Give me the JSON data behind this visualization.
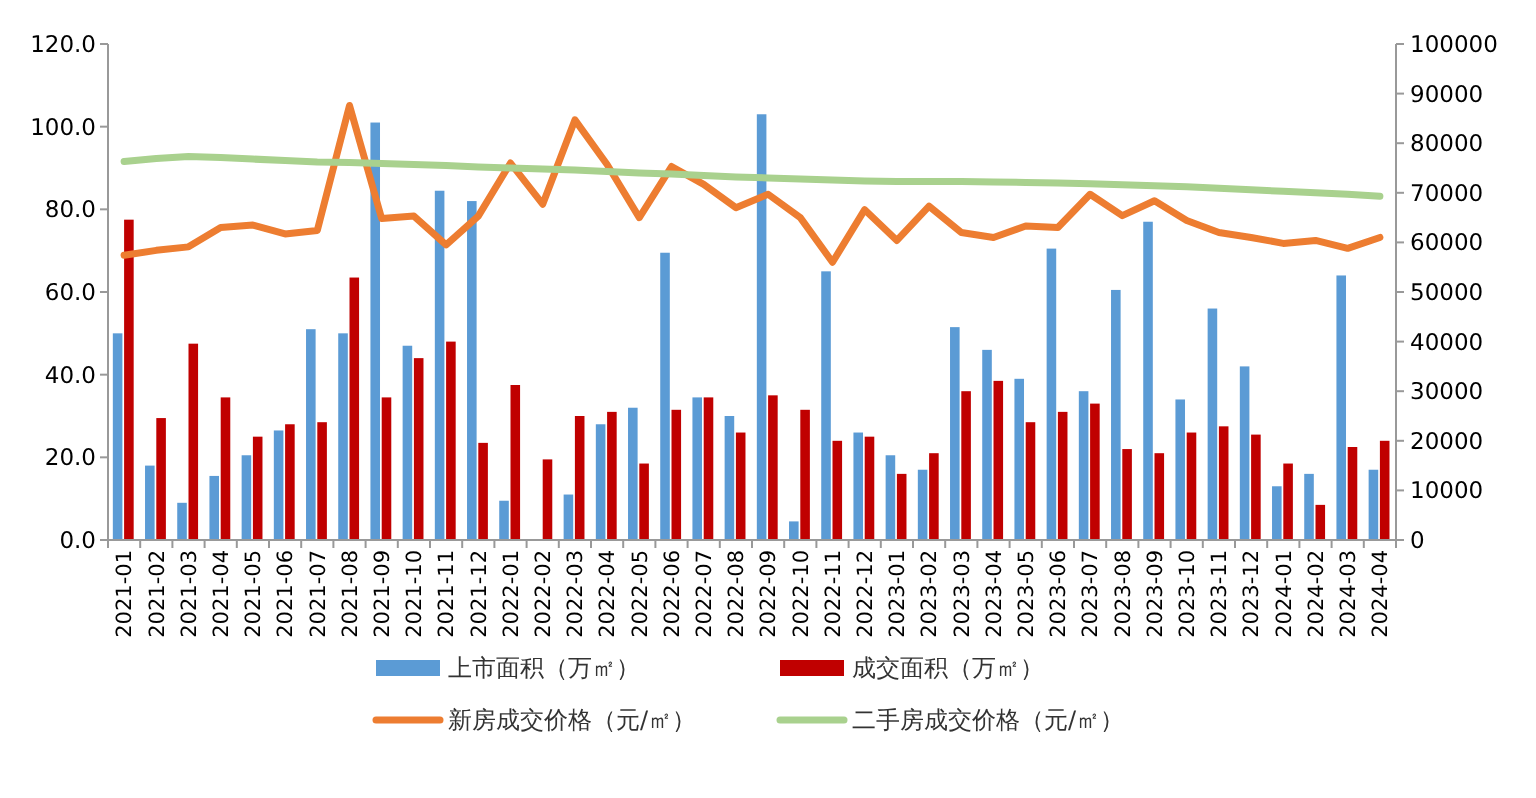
{
  "chart_data": {
    "type": "bar",
    "categories": [
      "2021-01",
      "2021-02",
      "2021-03",
      "2021-04",
      "2021-05",
      "2021-06",
      "2021-07",
      "2021-08",
      "2021-09",
      "2021-10",
      "2021-11",
      "2021-12",
      "2022-01",
      "2022-02",
      "2022-03",
      "2022-04",
      "2022-05",
      "2022-06",
      "2022-07",
      "2022-08",
      "2022-09",
      "2022-10",
      "2022-11",
      "2022-12",
      "2023-01",
      "2023-02",
      "2023-03",
      "2023-04",
      "2023-05",
      "2023-06",
      "2023-07",
      "2023-08",
      "2023-09",
      "2023-10",
      "2023-11",
      "2023-12",
      "2024-01",
      "2024-02",
      "2024-03",
      "2024-04"
    ],
    "series": [
      {
        "name": "上市面积（万㎡）",
        "color": "#5b9bd5",
        "values": [
          50,
          18,
          9,
          15.5,
          20.5,
          26.5,
          51,
          50,
          101,
          47,
          84.5,
          82,
          9.5,
          0,
          11,
          28,
          32,
          69.5,
          34.5,
          30,
          103,
          4.5,
          65,
          26,
          20.5,
          17,
          51.5,
          46,
          39,
          70.5,
          36,
          60.5,
          77,
          34,
          56,
          42,
          13,
          16,
          64,
          17
        ]
      },
      {
        "name": "成交面积（万㎡）",
        "color": "#c00000",
        "values": [
          77.5,
          29.5,
          47.5,
          34.5,
          25,
          28,
          28.5,
          63.5,
          34.5,
          44,
          48,
          23.5,
          37.5,
          19.5,
          30,
          31,
          18.5,
          31.5,
          34.5,
          26,
          35,
          31.5,
          24,
          25,
          16,
          21,
          36,
          38.5,
          28.5,
          31,
          33,
          22,
          21,
          26,
          27.5,
          25.5,
          18.5,
          8.5,
          22.5,
          24
        ]
      },
      {
        "name": "新房成交价格（元/㎡）",
        "type": "line",
        "axis": "y2",
        "color": "#ed7d31",
        "values": [
          57400,
          58400,
          59100,
          63000,
          63500,
          61700,
          62400,
          87600,
          64800,
          65300,
          59500,
          65300,
          76000,
          67700,
          84700,
          75700,
          65000,
          75300,
          71700,
          67000,
          69700,
          65000,
          56000,
          66600,
          60400,
          67300,
          62000,
          61000,
          63300,
          63000,
          69700,
          65400,
          68400,
          64400,
          62000,
          61000,
          59800,
          60400,
          58800,
          61000
        ]
      },
      {
        "name": "二手房成交价格（元/㎡）",
        "type": "line",
        "axis": "y2",
        "color": "#a9d18e",
        "values": [
          76300,
          76900,
          77300,
          77100,
          76800,
          76500,
          76200,
          76100,
          75900,
          75700,
          75500,
          75200,
          75000,
          74800,
          74600,
          74300,
          74000,
          73800,
          73500,
          73200,
          73000,
          72800,
          72600,
          72400,
          72300,
          72300,
          72300,
          72200,
          72100,
          72000,
          71800,
          71600,
          71400,
          71200,
          70900,
          70600,
          70300,
          70000,
          69700,
          69300
        ]
      }
    ],
    "ylim": [
      0,
      120
    ],
    "yticks": [
      {
        "value": 0,
        "label": "0.0"
      },
      {
        "value": 20,
        "label": "20.0"
      },
      {
        "value": 40,
        "label": "40.0"
      },
      {
        "value": 60,
        "label": "60.0"
      },
      {
        "value": 80,
        "label": "80.0"
      },
      {
        "value": 100,
        "label": "100.0"
      },
      {
        "value": 120,
        "label": "120.0"
      }
    ],
    "y2lim": [
      0,
      100000
    ],
    "y2ticks": [
      0,
      10000,
      20000,
      30000,
      40000,
      50000,
      60000,
      70000,
      80000,
      90000,
      100000
    ],
    "legend": "bottom",
    "grid": false
  }
}
